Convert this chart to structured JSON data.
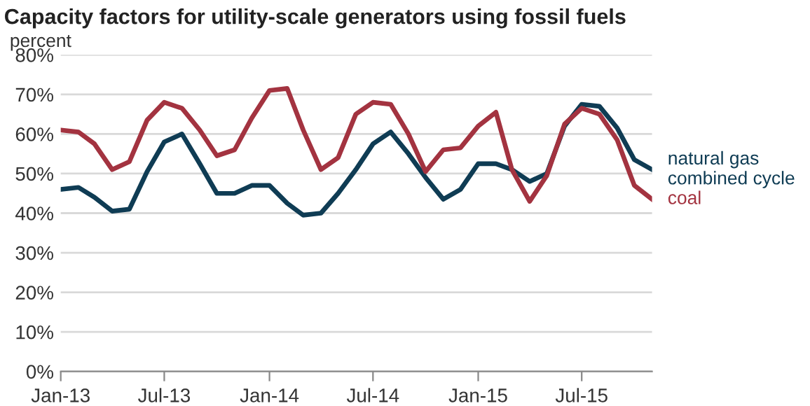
{
  "chart_data": {
    "type": "line",
    "title": "Capacity factors for utility-scale generators using fossil fuels",
    "ylabel": "percent",
    "x": [
      "2013-01",
      "2013-02",
      "2013-03",
      "2013-04",
      "2013-05",
      "2013-06",
      "2013-07",
      "2013-08",
      "2013-09",
      "2013-10",
      "2013-11",
      "2013-12",
      "2014-01",
      "2014-02",
      "2014-03",
      "2014-04",
      "2014-05",
      "2014-06",
      "2014-07",
      "2014-08",
      "2014-09",
      "2014-10",
      "2014-11",
      "2014-12",
      "2015-01",
      "2015-02",
      "2015-03",
      "2015-04",
      "2015-05",
      "2015-06",
      "2015-07",
      "2015-08",
      "2015-09",
      "2015-10",
      "2015-11"
    ],
    "series": [
      {
        "name": "natural gas\ncombined cycle",
        "color": "#0f3c54",
        "values": [
          46,
          46.5,
          44,
          40.5,
          41,
          50.5,
          58,
          60,
          52.5,
          45,
          45,
          47,
          47,
          42.5,
          39.5,
          40,
          45,
          51,
          57.5,
          60.5,
          55,
          49,
          43.5,
          46,
          52.5,
          52.5,
          51,
          48,
          50,
          62,
          67.5,
          67,
          61.5,
          53.5,
          51
        ]
      },
      {
        "name": "coal",
        "color": "#a33340",
        "values": [
          61,
          60.5,
          57.5,
          51,
          53,
          63.5,
          68,
          66.5,
          61,
          54.5,
          56,
          64,
          71,
          71.5,
          61,
          51,
          54,
          65,
          68,
          67.5,
          60,
          50.5,
          56,
          56.5,
          62,
          65.5,
          51,
          43,
          49.5,
          62.5,
          66.5,
          65,
          58.5,
          47,
          43.5
        ]
      }
    ],
    "xlim": [
      "2013-01",
      "2015-11"
    ],
    "xticks": [
      {
        "value": "2013-01",
        "label": "Jan-13"
      },
      {
        "value": "2013-07",
        "label": "Jul-13"
      },
      {
        "value": "2014-01",
        "label": "Jan-14"
      },
      {
        "value": "2014-07",
        "label": "Jul-14"
      },
      {
        "value": "2015-01",
        "label": "Jan-15"
      },
      {
        "value": "2015-07",
        "label": "Jul-15"
      }
    ],
    "ylim": [
      0,
      80
    ],
    "yticks": [
      {
        "value": 0,
        "label": "0%"
      },
      {
        "value": 10,
        "label": "10%"
      },
      {
        "value": 20,
        "label": "20%"
      },
      {
        "value": 30,
        "label": "30%"
      },
      {
        "value": 40,
        "label": "40%"
      },
      {
        "value": 50,
        "label": "50%"
      },
      {
        "value": 60,
        "label": "60%"
      },
      {
        "value": 70,
        "label": "70%"
      },
      {
        "value": 80,
        "label": "80%"
      }
    ],
    "grid": "y",
    "legend": "right",
    "line_style": "solid",
    "marker": "none"
  }
}
